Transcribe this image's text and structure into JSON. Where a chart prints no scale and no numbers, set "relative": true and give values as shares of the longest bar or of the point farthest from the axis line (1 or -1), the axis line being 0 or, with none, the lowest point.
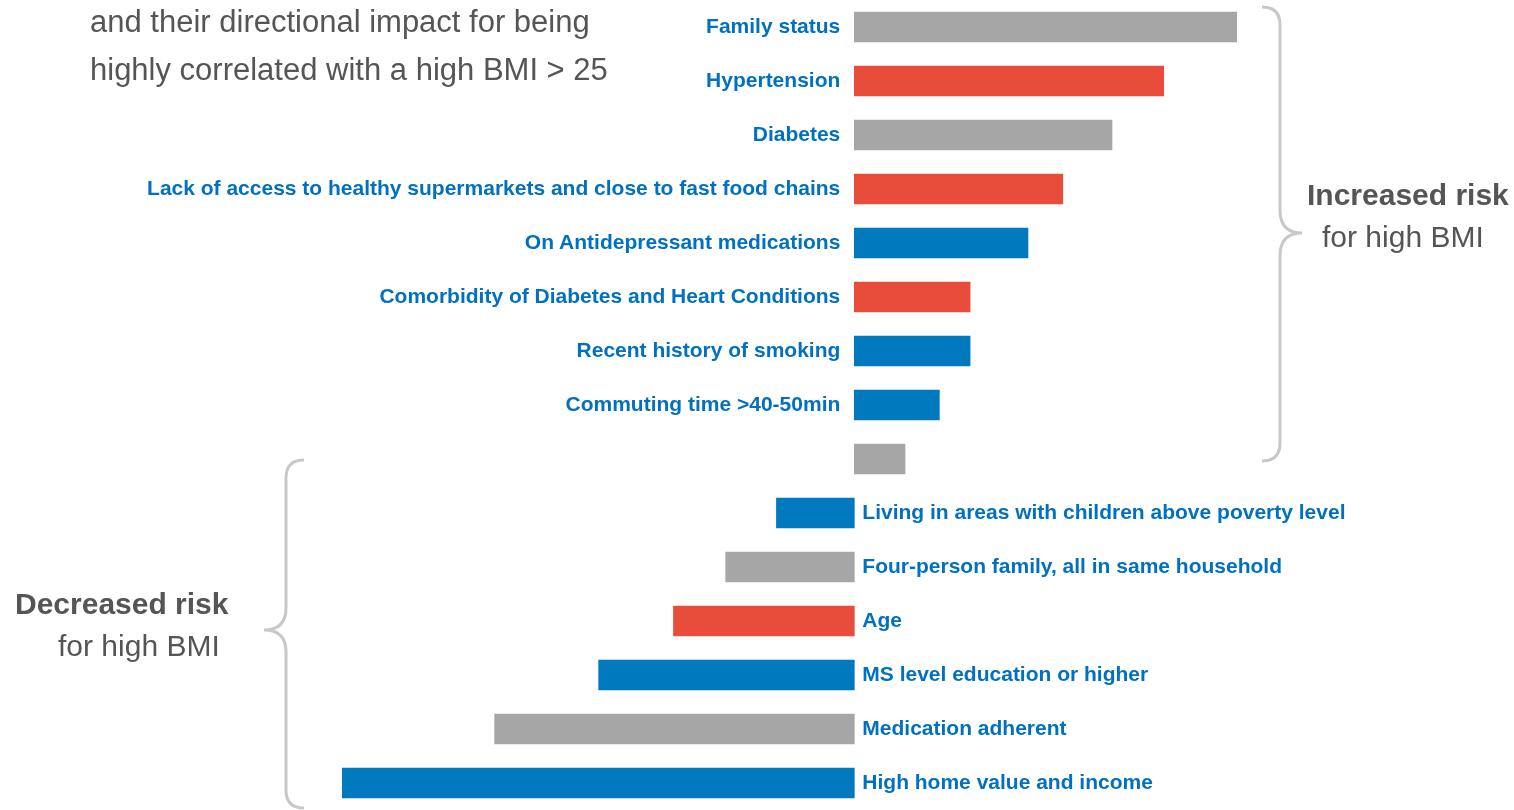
{
  "chart_data": {
    "type": "bar",
    "orientation": "horizontal",
    "relative": true,
    "title": "and their directional impact for being highly correlated with a high BMI > 25",
    "categories": [
      "Family status",
      "Hypertension",
      "Diabetes",
      "Lack of access to healthy supermarkets and close to fast food chains",
      "On Antidepressant medications",
      "Comorbidity of Diabetes and Heart Conditions",
      "Recent history of smoking",
      "Commuting time >40-50min",
      null,
      "Living in areas with children above poverty level",
      "Four-person family, all in same household",
      "Age",
      "MS level education or higher",
      "Medication adherent",
      "High home value and income"
    ],
    "values": [
      0.747,
      0.604,
      0.503,
      0.407,
      0.339,
      0.226,
      0.226,
      0.166,
      0.099,
      -0.152,
      -0.251,
      -0.353,
      -0.499,
      -0.702,
      -1
    ],
    "colors": [
      "#a6a6a6",
      "#e84c3a",
      "#a6a6a6",
      "#e84c3a",
      "#0079bf",
      "#e84c3a",
      "#0079bf",
      "#0079bf",
      "#a6a6a6",
      "#0079bf",
      "#a6a6a6",
      "#e84c3a",
      "#0079bf",
      "#a6a6a6",
      "#0079bf"
    ],
    "annotations": [
      "Increased risk",
      "for high BMI",
      "Decreased risk",
      "for high BMI"
    ],
    "legend": false
  }
}
